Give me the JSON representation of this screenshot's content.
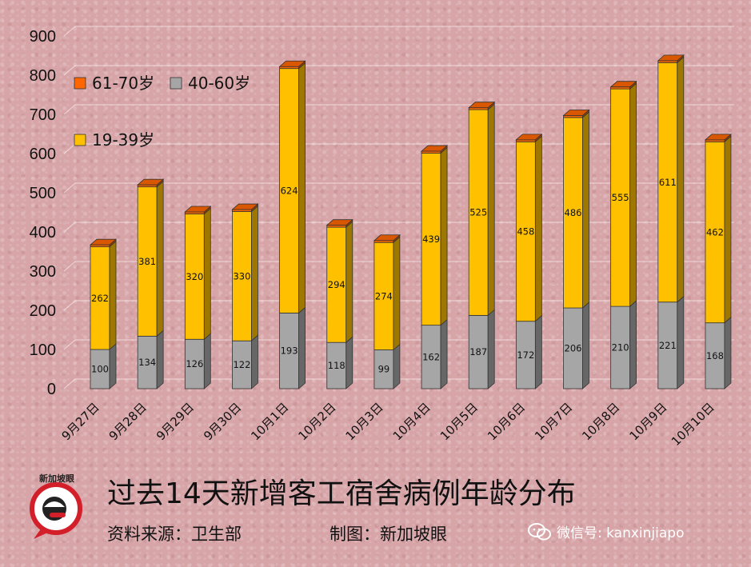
{
  "chart_data": {
    "type": "bar",
    "stacked": true,
    "categories": [
      "9月27日",
      "9月28日",
      "9月29日",
      "9月30日",
      "10月1日",
      "10月2日",
      "10月3日",
      "10月4日",
      "10月5日",
      "10月6日",
      "10月7日",
      "10月8日",
      "10月9日",
      "10月10日"
    ],
    "series": [
      {
        "name": "40-60岁",
        "color": "#a6a6a6",
        "values": [
          100,
          134,
          126,
          122,
          193,
          118,
          99,
          162,
          187,
          172,
          206,
          210,
          221,
          168
        ]
      },
      {
        "name": "19-39岁",
        "color": "#ffc000",
        "values": [
          262,
          381,
          320,
          330,
          624,
          294,
          274,
          439,
          525,
          458,
          486,
          555,
          611,
          462
        ]
      },
      {
        "name": "61-70岁",
        "color": "#ff6600",
        "values": [
          5,
          5,
          5,
          5,
          5,
          5,
          5,
          5,
          5,
          5,
          5,
          5,
          5,
          5
        ]
      }
    ],
    "yticks": [
      0,
      100,
      200,
      300,
      400,
      500,
      600,
      700,
      800,
      900
    ],
    "ylim": [
      0,
      900
    ],
    "grid": true,
    "legend_position": "top-left",
    "title": "过去14天新增客工宿舍病例年龄分布"
  },
  "footer": {
    "source": "资料来源：卫生部",
    "maker": "制图：新加坡眼",
    "wechat": "微信号: kanxinjiapo"
  },
  "logo": {
    "label": "新加坡眼"
  }
}
